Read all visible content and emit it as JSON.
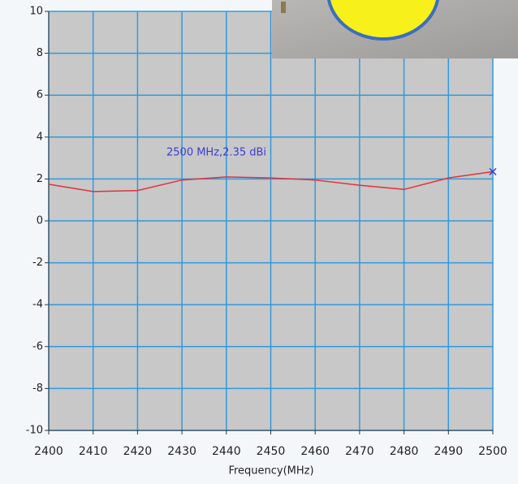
{
  "chart_data": {
    "type": "line",
    "x_label": "Frequency(MHz)",
    "annotation": "2500 MHz,2.35 dBi",
    "x": [
      2400,
      2410,
      2420,
      2430,
      2440,
      2450,
      2460,
      2470,
      2480,
      2490,
      2500
    ],
    "series": [
      {
        "color": "#e0323c",
        "values": [
          1.75,
          1.4,
          1.45,
          1.95,
          2.1,
          2.05,
          1.95,
          1.7,
          1.5,
          2.05,
          2.35
        ]
      }
    ],
    "marker_color": "#3a3adc",
    "xlim": [
      2400,
      2500
    ],
    "xticks": [
      2400,
      2410,
      2420,
      2430,
      2440,
      2450,
      2460,
      2470,
      2480,
      2490,
      2500
    ],
    "ylim": [
      -10,
      10
    ],
    "yticks": [
      -10,
      -8,
      -6,
      -4,
      -2,
      0,
      2,
      4,
      6,
      8,
      10
    ],
    "grid": true,
    "grid_color": "#2f9ae0",
    "plot_background": "#c8c8c8"
  }
}
